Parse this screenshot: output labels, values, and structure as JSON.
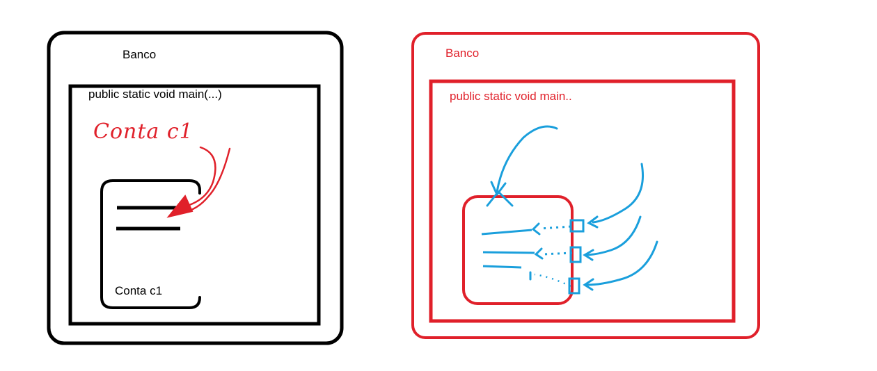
{
  "colors": {
    "black": "#000000",
    "red": "#e0202a",
    "blue": "#1a9fdc",
    "background": "#ffffff"
  },
  "left_diagram": {
    "outer_label": "Banco",
    "method_label": "public static void main(...)",
    "handwritten_label": "Conta c1",
    "object_label": "Conta c1"
  },
  "right_diagram": {
    "outer_label": "Banco",
    "method_label": "public static void main.."
  }
}
